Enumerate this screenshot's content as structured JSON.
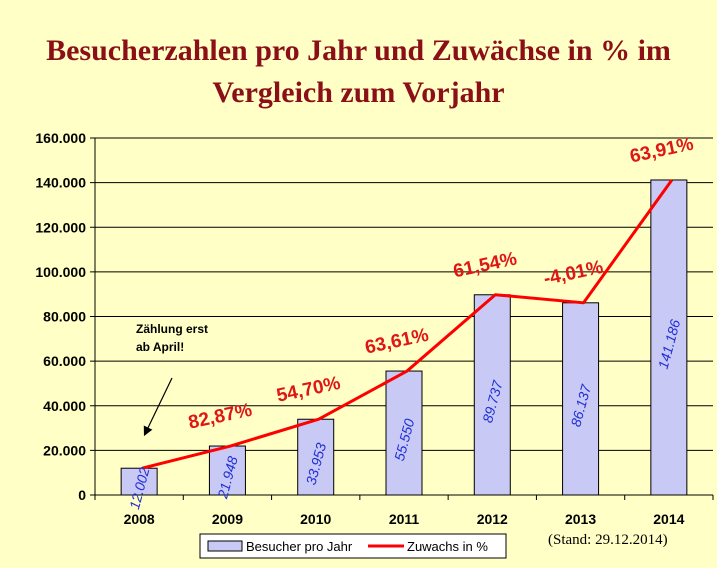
{
  "title_line1": "Besucherzahlen pro Jahr und Zuwächse in % im",
  "title_line2": "Vergleich zum Vorjahr",
  "stand": "(Stand: 29.12.2014)",
  "annotation": [
    "Zählung erst",
    "ab April!"
  ],
  "colors": {
    "background": "#ffffc6",
    "title": "#8b0f18",
    "bar_fill": "#c9c9f5",
    "bar_label": "#1f2fd6",
    "line": "#ff0000",
    "pct_label": "#e01515"
  },
  "chart_data": {
    "type": "bar",
    "categories": [
      "2008",
      "2009",
      "2010",
      "2011",
      "2012",
      "2013",
      "2014"
    ],
    "ylim": [
      0,
      160000
    ],
    "yticks": [
      "0",
      "20.000",
      "40.000",
      "60.000",
      "80.000",
      "100.000",
      "120.000",
      "140.000",
      "160.000"
    ],
    "grid": true,
    "legend_position": "bottom",
    "series": [
      {
        "name": "Besucher pro Jahr",
        "type": "bar",
        "values": [
          12002,
          21948,
          33953,
          55550,
          89737,
          86137,
          141186
        ],
        "labels": [
          "12.002",
          "21.948",
          "33.953",
          "55.550",
          "89.737",
          "86.137",
          "141.186"
        ]
      },
      {
        "name": "Zuwachs in %",
        "type": "line",
        "values": [
          12002,
          21948,
          33953,
          55550,
          89737,
          86137,
          141186
        ],
        "labels": [
          "",
          "82,87%",
          "54,70%",
          "63,61%",
          "61,54%",
          "-4,01%",
          "63,91%"
        ]
      }
    ]
  }
}
